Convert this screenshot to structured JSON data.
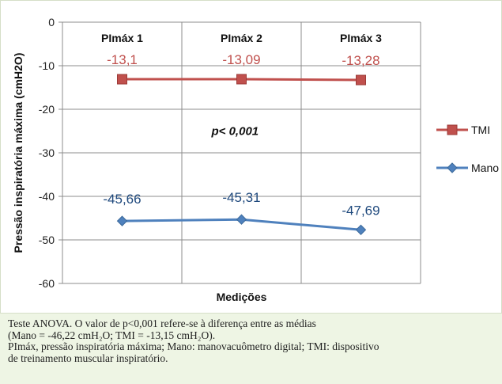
{
  "chart_data": {
    "type": "line",
    "categories": [
      "PImáx 1",
      "PImáx 2",
      "PImáx 3"
    ],
    "series": [
      {
        "name": "TMI",
        "values": [
          -13.1,
          -13.09,
          -13.28
        ],
        "labels": [
          "-13,1",
          "-13,09",
          "-13,28"
        ],
        "color": "#c0504d"
      },
      {
        "name": "Mano",
        "values": [
          -45.66,
          -45.31,
          -47.69
        ],
        "labels": [
          "-45,66",
          "-45,31",
          "-47,69"
        ],
        "color": "#4f81bd"
      }
    ],
    "xlabel": "Medições",
    "ylabel": "Pressão inspiratória máxima (cmH2O)",
    "ylim": [
      -60,
      0
    ],
    "yticks": [
      0,
      -10,
      -20,
      -30,
      -40,
      -50,
      -60
    ],
    "ytick_labels": [
      "0",
      "-10",
      "-20",
      "-30",
      "-40",
      "-50",
      "-60"
    ],
    "annotation": "p< 0,001",
    "grid": true,
    "legend_position": "right"
  },
  "note": {
    "line1": "Teste ANOVA. O valor de p<0,001 refere-se à diferença entre as médias",
    "line2": "(Mano = -46,22 cmH₂O; TMI = -13,15 cmH₂O).",
    "line3": "PImáx, pressão inspiratória máxima; Mano: manovacuômetro digital; TMI: dispositivo",
    "line4": "de treinamento muscular inspiratório."
  }
}
